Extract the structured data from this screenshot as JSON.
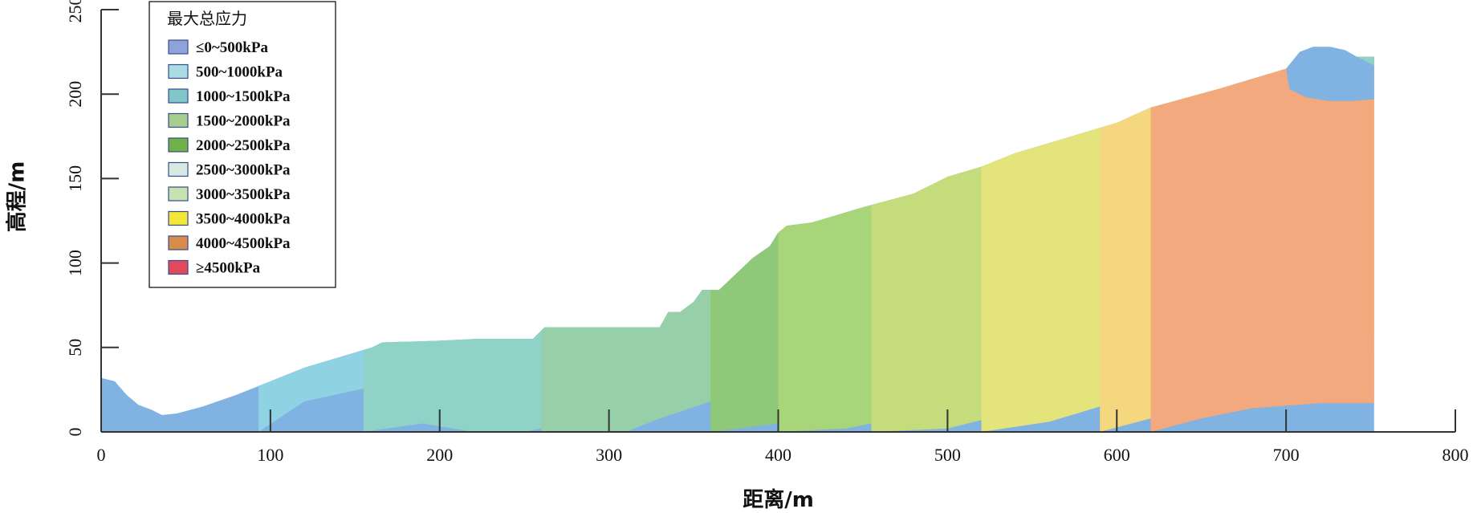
{
  "chart_data": {
    "type": "area",
    "title": "",
    "xlabel": "距离/m",
    "ylabel": "高程/m",
    "xlim": [
      0,
      800
    ],
    "ylim": [
      0,
      250
    ],
    "xticks": [
      0,
      100,
      200,
      300,
      400,
      500,
      600,
      700,
      800
    ],
    "yticks": [
      0,
      50,
      100,
      150,
      200,
      250
    ],
    "grid": false,
    "legend": {
      "title": "最大总应力",
      "placement": "top-left",
      "entries": [
        {
          "label": "≤0~500kPa",
          "color": "#8ea4d8"
        },
        {
          "label": "500~1000kPa",
          "color": "#a9dce3"
        },
        {
          "label": "1000~1500kPa",
          "color": "#7fc7c8"
        },
        {
          "label": "1500~2000kPa",
          "color": "#a6ce8e"
        },
        {
          "label": "2000~2500kPa",
          "color": "#6fb24a"
        },
        {
          "label": "2500~3000kPa",
          "color": "#d6e9e2"
        },
        {
          "label": "3000~3500kPa",
          "color": "#c6e2b0"
        },
        {
          "label": "3500~4000kPa",
          "color": "#f1e63a"
        },
        {
          "label": "4000~4500kPa",
          "color": "#d88c4c"
        },
        {
          "label": "≥4500kPa",
          "color": "#e04a5a"
        }
      ]
    },
    "surface_profile": [
      [
        0,
        32
      ],
      [
        8,
        30
      ],
      [
        15,
        22
      ],
      [
        22,
        16
      ],
      [
        30,
        13
      ],
      [
        36,
        10
      ],
      [
        45,
        11
      ],
      [
        60,
        15
      ],
      [
        80,
        22
      ],
      [
        100,
        30
      ],
      [
        120,
        38
      ],
      [
        140,
        44
      ],
      [
        160,
        50
      ],
      [
        166,
        53
      ],
      [
        200,
        54
      ],
      [
        220,
        55
      ],
      [
        255,
        55
      ],
      [
        262,
        62
      ],
      [
        330,
        62
      ],
      [
        335,
        71
      ],
      [
        342,
        71
      ],
      [
        350,
        77
      ],
      [
        355,
        84
      ],
      [
        365,
        84
      ],
      [
        385,
        103
      ],
      [
        395,
        110
      ],
      [
        400,
        118
      ],
      [
        405,
        122
      ],
      [
        420,
        124
      ],
      [
        450,
        133
      ],
      [
        480,
        141
      ],
      [
        500,
        151
      ],
      [
        520,
        157
      ],
      [
        540,
        165
      ],
      [
        580,
        177
      ],
      [
        600,
        183
      ],
      [
        620,
        192
      ],
      [
        660,
        203
      ],
      [
        700,
        215
      ],
      [
        715,
        223
      ],
      [
        722,
        226
      ],
      [
        730,
        225
      ],
      [
        740,
        222
      ],
      [
        752,
        222
      ],
      [
        752,
        0
      ]
    ],
    "zones": [
      {
        "range": "≤0~500kPa",
        "color": "#80b2e2",
        "lower": [
          [
            0,
            0
          ],
          [
            752,
            0
          ]
        ]
      },
      {
        "range": "500~1000kPa",
        "color": "#8ed2e3",
        "lower": [
          [
            93,
            0
          ],
          [
            120,
            18
          ],
          [
            170,
            29
          ],
          [
            260,
            33
          ],
          [
            330,
            35
          ],
          [
            345,
            50
          ],
          [
            365,
            75
          ],
          [
            385,
            92
          ],
          [
            405,
            103
          ],
          [
            450,
            113
          ],
          [
            500,
            126
          ],
          [
            550,
            135
          ],
          [
            600,
            148
          ],
          [
            650,
            160
          ],
          [
            690,
            178
          ],
          [
            700,
            198
          ],
          [
            710,
            205
          ],
          [
            752,
            205
          ]
        ]
      },
      {
        "range": "1000~1500kPa",
        "color": "#8ed2c8",
        "lower": [
          [
            155,
            0
          ],
          [
            190,
            5
          ],
          [
            220,
            0
          ],
          [
            250,
            0
          ],
          [
            300,
            10
          ],
          [
            330,
            22
          ],
          [
            370,
            40
          ],
          [
            420,
            58
          ],
          [
            470,
            75
          ],
          [
            520,
            93
          ],
          [
            570,
            108
          ],
          [
            620,
            122
          ],
          [
            680,
            135
          ],
          [
            752,
            138
          ]
        ]
      },
      {
        "range": "1500~2000kPa",
        "color": "#96cfa8",
        "lower": [
          [
            260,
            0
          ],
          [
            310,
            0
          ],
          [
            330,
            8
          ],
          [
            360,
            18
          ],
          [
            400,
            30
          ],
          [
            450,
            48
          ],
          [
            500,
            63
          ],
          [
            550,
            80
          ],
          [
            600,
            96
          ],
          [
            650,
            108
          ],
          [
            700,
            115
          ],
          [
            752,
            117
          ]
        ]
      },
      {
        "range": "2000~2500kPa",
        "color": "#8ec878",
        "lower": [
          [
            360,
            0
          ],
          [
            400,
            5
          ],
          [
            430,
            14
          ],
          [
            470,
            26
          ],
          [
            520,
            42
          ],
          [
            570,
            58
          ],
          [
            620,
            75
          ],
          [
            670,
            88
          ],
          [
            720,
            95
          ],
          [
            752,
            97
          ]
        ]
      },
      {
        "range": "2500~3000kPa",
        "color": "#a9d57a",
        "lower": [
          [
            400,
            0
          ],
          [
            440,
            2
          ],
          [
            480,
            10
          ],
          [
            520,
            22
          ],
          [
            570,
            36
          ],
          [
            620,
            52
          ],
          [
            670,
            66
          ],
          [
            720,
            76
          ],
          [
            752,
            78
          ]
        ]
      },
      {
        "range": "3000~3500kPa",
        "color": "#c5dc7c",
        "lower": [
          [
            455,
            0
          ],
          [
            500,
            2
          ],
          [
            540,
            12
          ],
          [
            580,
            24
          ],
          [
            620,
            36
          ],
          [
            670,
            50
          ],
          [
            720,
            58
          ],
          [
            752,
            59
          ]
        ]
      },
      {
        "range": "3500~4000kPa",
        "color": "#e3e47c",
        "lower": [
          [
            520,
            0
          ],
          [
            560,
            6
          ],
          [
            600,
            18
          ],
          [
            640,
            30
          ],
          [
            690,
            40
          ],
          [
            730,
            45
          ],
          [
            752,
            45
          ]
        ]
      },
      {
        "range": "4000~4500kPa",
        "color": "#f4d77e",
        "lower": [
          [
            590,
            0
          ],
          [
            620,
            8
          ],
          [
            660,
            18
          ],
          [
            700,
            25
          ],
          [
            730,
            28
          ],
          [
            752,
            28
          ]
        ]
      },
      {
        "range": "≥4500kPa",
        "color": "#f3a97e",
        "lower": [
          [
            620,
            0
          ],
          [
            650,
            8
          ],
          [
            680,
            14
          ],
          [
            720,
            17
          ],
          [
            752,
            17
          ]
        ]
      }
    ],
    "crest_cap": {
      "color": "#80b2e2",
      "upper": [
        [
          700,
          215
        ],
        [
          708,
          225
        ],
        [
          716,
          228
        ],
        [
          726,
          228
        ],
        [
          735,
          226
        ],
        [
          742,
          222
        ]
      ],
      "lower": [
        [
          702,
          203
        ],
        [
          712,
          198
        ],
        [
          725,
          196
        ],
        [
          740,
          196
        ],
        [
          752,
          197
        ]
      ]
    },
    "base_markers": [
      100,
      200,
      300,
      400,
      500,
      600,
      700
    ]
  }
}
